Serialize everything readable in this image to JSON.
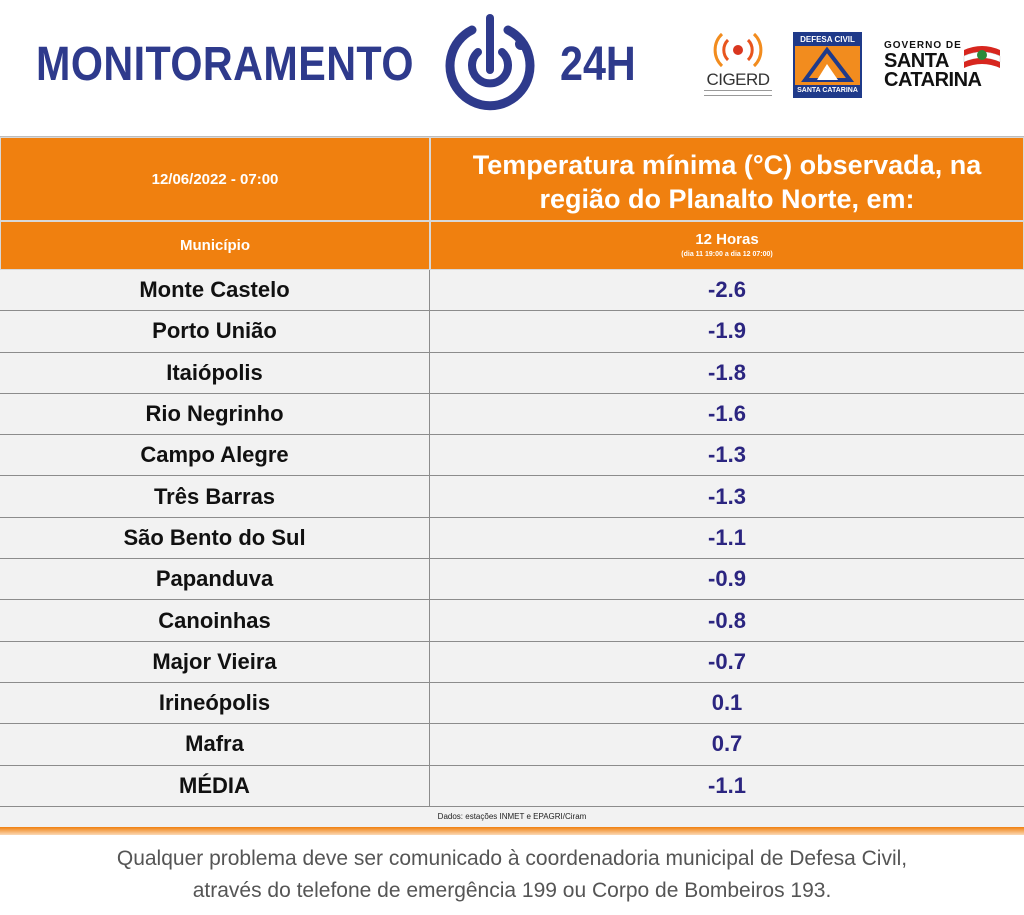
{
  "header": {
    "title_left": "MONITORAMENTO",
    "title_right": "24H",
    "power_icon": "power-icon",
    "logos": {
      "cigerd": "CIGERD",
      "defesa_top": "DEFESA CIVIL",
      "defesa_bottom": "SANTA CATARINA",
      "gov_line1": "GOVERNO DE",
      "gov_line2": "SANTA",
      "gov_line3": "CATARINA"
    }
  },
  "table": {
    "datetime": "12/06/2022 - 07:00",
    "title_line1": "Temperatura mínima (°C) observada, na",
    "title_line2": "região do Planalto Norte, em:",
    "col_municipio": "Município",
    "col_period": "12 Horas",
    "col_period_detail": "(dia 11 19:00 a dia 12 07:00)",
    "rows": [
      {
        "municipio": "Monte Castelo",
        "valor": "-2.6"
      },
      {
        "municipio": "Porto União",
        "valor": "-1.9"
      },
      {
        "municipio": "Itaiópolis",
        "valor": "-1.8"
      },
      {
        "municipio": "Rio Negrinho",
        "valor": "-1.6"
      },
      {
        "municipio": "Campo Alegre",
        "valor": "-1.3"
      },
      {
        "municipio": "Três Barras",
        "valor": "-1.3"
      },
      {
        "municipio": "São Bento do Sul",
        "valor": "-1.1"
      },
      {
        "municipio": "Papanduva",
        "valor": "-0.9"
      },
      {
        "municipio": "Canoinhas",
        "valor": "-0.8"
      },
      {
        "municipio": "Major Vieira",
        "valor": "-0.7"
      },
      {
        "municipio": "Irineópolis",
        "valor": "0.1"
      },
      {
        "municipio": "Mafra",
        "valor": "0.7"
      },
      {
        "municipio": "MÉDIA",
        "valor": "-1.1"
      }
    ],
    "source": "Dados: estações INMET e EPAGRI/Ciram"
  },
  "footer": {
    "line1": "Qualquer problema deve ser comunicado à coordenadoria municipal de Defesa Civil,",
    "line2": "através do telefone de emergência 199 ou Corpo de Bombeiros 193."
  },
  "colors": {
    "brand_blue": "#2e3a8c",
    "orange": "#f0800f",
    "value_blue": "#2b2580"
  }
}
